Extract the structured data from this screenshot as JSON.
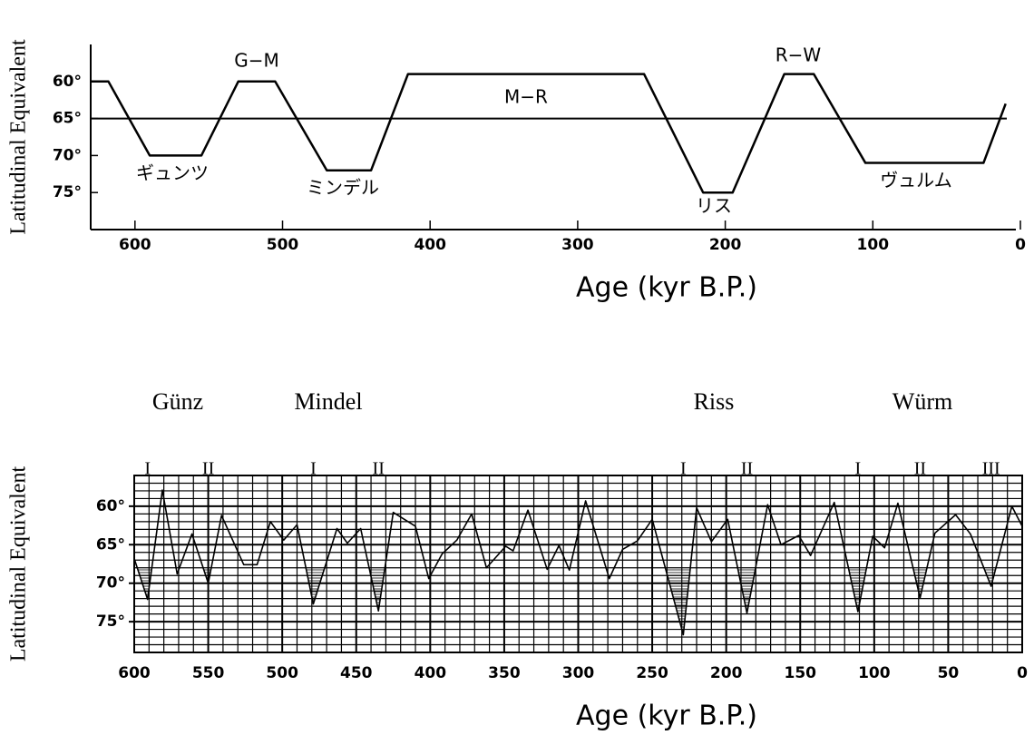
{
  "chart_data": [
    {
      "type": "line",
      "y_label": "Latitudinal Equivalent",
      "x_label": "Age (kyr B.P.)",
      "xlim": [
        630,
        0
      ],
      "xticks": [
        600,
        500,
        400,
        300,
        200,
        100,
        0
      ],
      "ylim": [
        55,
        80
      ],
      "y_inverted": true,
      "yticks": [
        {
          "value": 60,
          "label": "60°"
        },
        {
          "value": 65,
          "label": "65°"
        },
        {
          "value": 70,
          "label": "70°"
        },
        {
          "value": 75,
          "label": "75°"
        }
      ],
      "reference_line": 65,
      "x": [
        630,
        618,
        590,
        555,
        530,
        505,
        470,
        440,
        415,
        255,
        215,
        195,
        160,
        140,
        105,
        25,
        10
      ],
      "series": [
        {
          "color": "#000000",
          "values": [
            60,
            60,
            70,
            70,
            60,
            60,
            72,
            72,
            59,
            59,
            75,
            75,
            59,
            59,
            71,
            71,
            63
          ]
        }
      ],
      "annotations": [
        "G−M",
        "M−R",
        "R−W",
        "ギュンツ",
        "ミンデル",
        "リス",
        "ヴュルム"
      ]
    },
    {
      "type": "line",
      "y_label": "Latitudinal Equivalent",
      "x_label": "Age (kyr B.P.)",
      "xlim": [
        600,
        0
      ],
      "xticks": [
        600,
        550,
        500,
        450,
        400,
        350,
        300,
        250,
        200,
        150,
        100,
        50,
        0
      ],
      "minor_xticks": [
        590,
        580,
        570,
        560,
        540,
        530,
        520,
        510,
        490,
        480,
        470,
        460,
        440,
        430,
        420,
        410,
        390,
        380,
        370,
        360,
        340,
        330,
        320,
        310,
        290,
        280,
        270,
        260,
        240,
        230,
        220,
        210,
        190,
        180,
        170,
        160,
        140,
        130,
        120,
        110,
        90,
        80,
        70,
        60,
        40,
        30,
        20,
        10
      ],
      "ylim": [
        56,
        79
      ],
      "y_inverted": true,
      "yticks": [
        {
          "value": 60,
          "label": "60°"
        },
        {
          "value": 65,
          "label": "65°"
        },
        {
          "value": 70,
          "label": "70°"
        },
        {
          "value": 75,
          "label": "75°"
        }
      ],
      "minor_yticks": [
        57,
        58,
        59,
        61,
        62,
        63,
        64,
        66,
        67,
        68,
        69,
        71,
        72,
        73,
        74,
        76,
        77,
        78
      ],
      "grid": true,
      "shade_threshold": 68,
      "x": [
        600,
        591,
        581,
        571,
        561,
        550,
        541,
        526,
        517,
        508,
        499,
        490,
        479,
        463,
        456,
        447,
        435,
        425,
        410,
        401,
        392,
        382,
        372,
        362,
        349,
        344,
        334,
        321,
        313,
        306,
        295,
        279,
        270,
        260,
        250,
        229,
        220,
        210,
        199,
        186,
        172,
        163,
        151,
        143,
        127,
        111,
        101,
        93,
        84,
        69,
        59,
        45,
        35,
        21,
        7,
        0
      ],
      "series": [
        {
          "color": "#000000",
          "values": [
            66.8,
            72.1,
            57.9,
            68.8,
            63.6,
            70,
            61.2,
            67.6,
            67.6,
            62,
            64.4,
            62.4,
            72.7,
            62.9,
            64.8,
            62.9,
            73.6,
            60.8,
            62.6,
            69.4,
            66.2,
            64.4,
            61,
            68,
            65.2,
            65.8,
            60.5,
            68.2,
            65.1,
            68.3,
            59.3,
            69.4,
            65.6,
            64.5,
            61.7,
            76.7,
            60.2,
            64.6,
            61.7,
            73.9,
            59.8,
            65,
            63.8,
            66.4,
            59.5,
            73.7,
            63.9,
            65.4,
            59.6,
            71.9,
            63.5,
            61.1,
            63.6,
            70.4,
            60,
            62.6
          ]
        }
      ],
      "glacials": [
        "Günz",
        "Mindel",
        "Riss",
        "Würm"
      ],
      "stadials": [
        {
          "label": "I",
          "age": 591
        },
        {
          "label": "II",
          "age": 550
        },
        {
          "label": "I",
          "age": 479
        },
        {
          "label": "II",
          "age": 435
        },
        {
          "label": "I",
          "age": 229
        },
        {
          "label": "II",
          "age": 186
        },
        {
          "label": "I",
          "age": 111
        },
        {
          "label": "II",
          "age": 69
        },
        {
          "label": "III",
          "age": 21
        }
      ]
    }
  ]
}
